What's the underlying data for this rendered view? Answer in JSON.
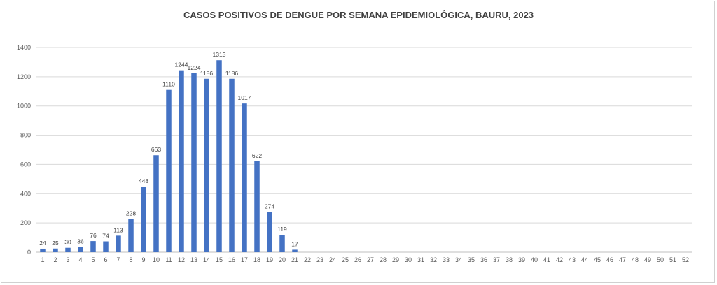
{
  "chart_data": {
    "type": "bar",
    "title": "CASOS POSITIVOS DE DENGUE POR SEMANA EPIDEMIOLÓGICA, BAURU, 2023",
    "xlabel": "",
    "ylabel": "",
    "categories": [
      "1",
      "2",
      "3",
      "4",
      "5",
      "6",
      "7",
      "8",
      "9",
      "10",
      "11",
      "12",
      "13",
      "14",
      "15",
      "16",
      "17",
      "18",
      "19",
      "20",
      "21",
      "22",
      "23",
      "24",
      "25",
      "26",
      "27",
      "28",
      "29",
      "30",
      "31",
      "32",
      "33",
      "34",
      "35",
      "36",
      "37",
      "38",
      "39",
      "40",
      "41",
      "42",
      "43",
      "44",
      "45",
      "46",
      "47",
      "48",
      "49",
      "50",
      "51",
      "52"
    ],
    "values": [
      24,
      25,
      30,
      36,
      76,
      74,
      113,
      228,
      448,
      663,
      1110,
      1244,
      1224,
      1186,
      1313,
      1186,
      1017,
      622,
      274,
      119,
      17,
      null,
      null,
      null,
      null,
      null,
      null,
      null,
      null,
      null,
      null,
      null,
      null,
      null,
      null,
      null,
      null,
      null,
      null,
      null,
      null,
      null,
      null,
      null,
      null,
      null,
      null,
      null,
      null,
      null,
      null,
      null
    ],
    "ylim": [
      0,
      1400
    ],
    "yticks": [
      "0",
      "200",
      "400",
      "600",
      "800",
      "1000",
      "1200",
      "1400"
    ],
    "grid": true,
    "bar_color": "#4472C4"
  }
}
